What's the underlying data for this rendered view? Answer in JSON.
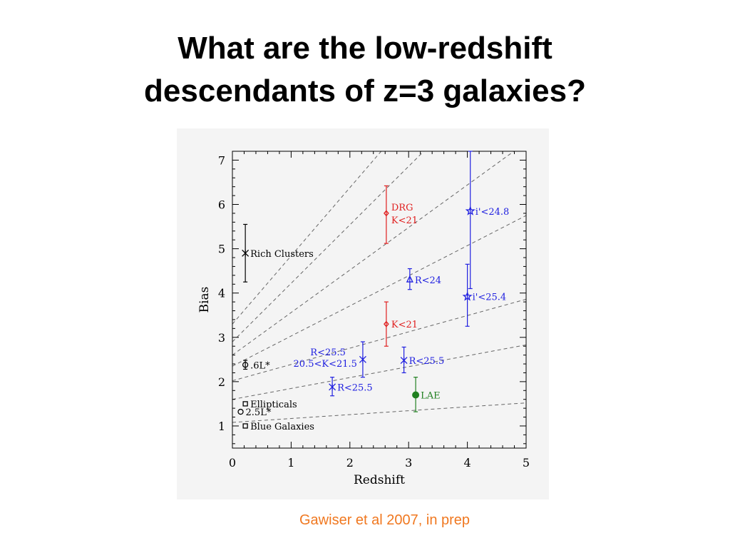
{
  "slide": {
    "title_line1": "What are the low-redshift",
    "title_line2": "descendants of z=3 galaxies?",
    "credit": "Gawiser et al 2007, in prep"
  },
  "colors": {
    "black": "#000000",
    "red": "#e02020",
    "blue": "#2020e0",
    "green": "#208020",
    "credit": "#f07820",
    "dashed_lines": "#666666"
  },
  "chart_data": {
    "type": "scatter",
    "xlabel": "Redshift",
    "ylabel": "Bias",
    "xlim": [
      0,
      5
    ],
    "ylim": [
      0.5,
      7.2
    ],
    "xticks": [
      0,
      1,
      2,
      3,
      4,
      5
    ],
    "yticks": [
      1,
      2,
      3,
      4,
      5,
      6,
      7
    ],
    "grid": false,
    "reference_lines": [
      {
        "b0": 1.08,
        "b5": 1.52
      },
      {
        "b0": 1.6,
        "b5": 2.83
      },
      {
        "b0": 2.02,
        "b5": 3.86
      },
      {
        "b0": 2.35,
        "b5": 5.75
      },
      {
        "b0": 2.6,
        "b5": 7.4
      },
      {
        "b0": 2.9,
        "b5": 9.5
      },
      {
        "b0": 3.3,
        "b5": 11.0
      }
    ],
    "points": [
      {
        "x": 0.22,
        "y": 4.9,
        "lo": 4.25,
        "hi": 5.55,
        "marker": "x",
        "color": "black",
        "label": "Rich Clusters",
        "anchor": "right"
      },
      {
        "x": 0.22,
        "y": 2.38,
        "lo": 2.28,
        "hi": 2.48,
        "marker": "o",
        "color": "black",
        "label": ".6L*",
        "anchor": "right"
      },
      {
        "x": 0.22,
        "y": 1.5,
        "lo": null,
        "hi": null,
        "marker": "s",
        "color": "black",
        "label": "Ellipticals",
        "anchor": "right"
      },
      {
        "x": 0.14,
        "y": 1.32,
        "lo": null,
        "hi": null,
        "marker": "o",
        "color": "black",
        "label": "2.5L*",
        "anchor": "right"
      },
      {
        "x": 0.22,
        "y": 1.0,
        "lo": null,
        "hi": null,
        "marker": "s",
        "color": "black",
        "label": "Blue Galaxies",
        "anchor": "right"
      },
      {
        "x": 2.62,
        "y": 5.8,
        "lo": 5.12,
        "hi": 6.42,
        "marker": "d",
        "color": "red",
        "label": "DRG",
        "label2": "K<21",
        "anchor": "right"
      },
      {
        "x": 2.62,
        "y": 3.3,
        "lo": 2.8,
        "hi": 3.8,
        "marker": "d",
        "color": "red",
        "label": "K<21",
        "anchor": "right"
      },
      {
        "x": 3.02,
        "y": 4.3,
        "lo": 4.08,
        "hi": 4.55,
        "marker": "^",
        "color": "blue",
        "label": "R<24",
        "anchor": "right"
      },
      {
        "x": 4.05,
        "y": 5.85,
        "lo": 4.1,
        "hi": 7.2,
        "marker": "*",
        "color": "blue",
        "label": "i'<24.8",
        "anchor": "right"
      },
      {
        "x": 4.0,
        "y": 3.92,
        "lo": 3.25,
        "hi": 4.65,
        "marker": "*",
        "color": "blue",
        "label": "i'<25.4",
        "anchor": "right"
      },
      {
        "x": 2.22,
        "y": 2.5,
        "lo": 2.1,
        "hi": 2.9,
        "marker": "x",
        "color": "blue",
        "label": "R<25.5",
        "label2": "20.5<K<21.5",
        "anchor": "left"
      },
      {
        "x": 2.92,
        "y": 2.48,
        "lo": 2.2,
        "hi": 2.78,
        "marker": "x",
        "color": "blue",
        "label": "R<25.5",
        "anchor": "right"
      },
      {
        "x": 1.7,
        "y": 1.88,
        "lo": 1.68,
        "hi": 2.1,
        "marker": "x",
        "color": "blue",
        "label": "R<25.5",
        "anchor": "right"
      },
      {
        "x": 3.12,
        "y": 1.7,
        "lo": 1.32,
        "hi": 2.1,
        "marker": "filled-o",
        "color": "green",
        "label": "LAE",
        "anchor": "right"
      }
    ]
  }
}
